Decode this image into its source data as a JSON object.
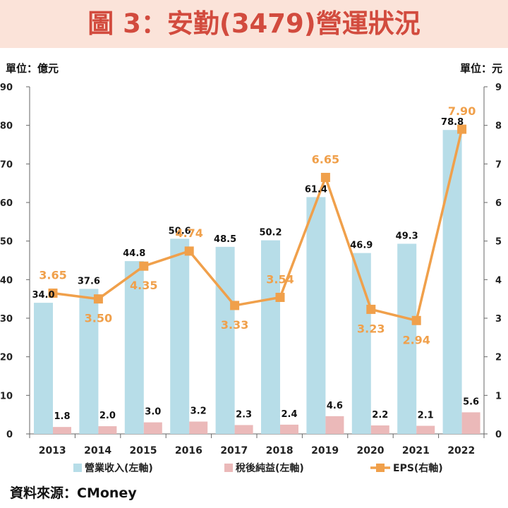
{
  "title": "圖 3：安勤(3479)營運狀況",
  "unit_left": "單位：億元",
  "unit_right": "單位：元",
  "source": "資料來源：CMoney",
  "colors": {
    "title_bg": "#fbe3d9",
    "title_text": "#d24b3e",
    "revenue": "#b7dde8",
    "net_income": "#ebb9b9",
    "eps": "#f0a04b"
  },
  "chart_data": {
    "type": "bar",
    "categories": [
      "2013",
      "2014",
      "2015",
      "2016",
      "2017",
      "2018",
      "2019",
      "2020",
      "2021",
      "2022"
    ],
    "series": [
      {
        "name": "營業收入(左軸)",
        "type": "bar",
        "axis": "left",
        "values": [
          34.0,
          37.6,
          44.8,
          50.6,
          48.5,
          50.2,
          61.4,
          46.9,
          49.3,
          78.8
        ],
        "labels": [
          "34.0",
          "37.6",
          "44.8",
          "50.6",
          "48.5",
          "50.2",
          "61.4",
          "46.9",
          "49.3",
          "78.8"
        ]
      },
      {
        "name": "稅後純益(左軸)",
        "type": "bar",
        "axis": "left",
        "values": [
          1.8,
          2.0,
          3.0,
          3.2,
          2.3,
          2.4,
          4.6,
          2.2,
          2.1,
          5.6
        ],
        "labels": [
          "1.8",
          "2.0",
          "3.0",
          "3.2",
          "2.3",
          "2.4",
          "4.6",
          "2.2",
          "2.1",
          "5.6"
        ]
      },
      {
        "name": "EPS(右軸)",
        "type": "line",
        "axis": "right",
        "values": [
          3.65,
          3.5,
          4.35,
          4.74,
          3.33,
          3.54,
          6.65,
          3.23,
          2.94,
          7.9
        ],
        "labels": [
          "3.65",
          "3.50",
          "4.35",
          "4.74",
          "3.33",
          "3.54",
          "6.65",
          "3.23",
          "2.94",
          "7.90"
        ]
      }
    ],
    "y_left": {
      "min": 0,
      "max": 90,
      "ticks": [
        "0",
        "10",
        "20",
        "30",
        "40",
        "50",
        "60",
        "70",
        "80",
        "90"
      ]
    },
    "y_right": {
      "min": 0,
      "max": 9,
      "ticks": [
        "0",
        "1",
        "2",
        "3",
        "4",
        "5",
        "6",
        "7",
        "8",
        "9"
      ]
    },
    "grid": false,
    "legend_position": "bottom"
  }
}
